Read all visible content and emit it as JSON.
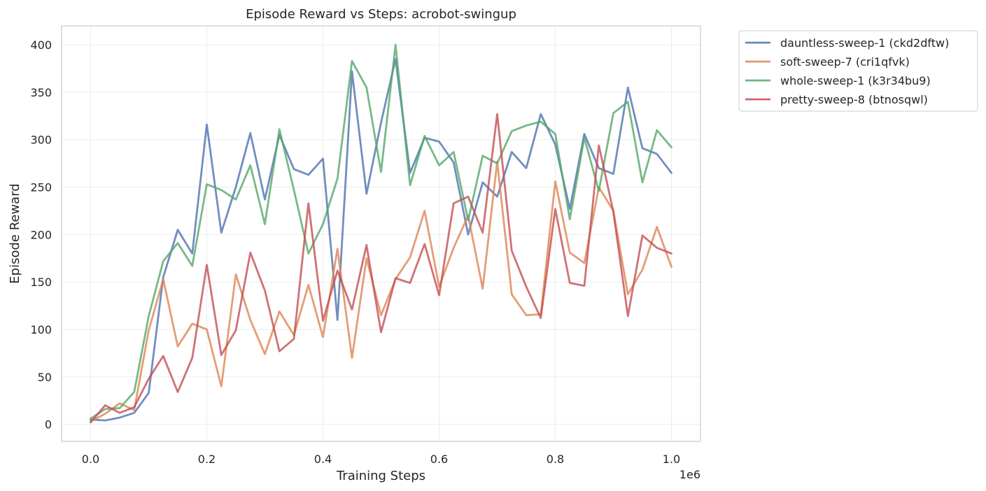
{
  "chart_data": {
    "type": "line",
    "title": "Episode Reward vs Steps: acrobot-swingup",
    "xlabel": "Training Steps",
    "ylabel": "Episode Reward",
    "x_offset_label": "1e6",
    "xlim": [
      -0.05,
      1.05
    ],
    "ylim": [
      -18,
      420
    ],
    "xticks": [
      0.0,
      0.2,
      0.4,
      0.6,
      0.8,
      1.0
    ],
    "xtick_labels": [
      "0.0",
      "0.2",
      "0.4",
      "0.6",
      "0.8",
      "1.0"
    ],
    "yticks": [
      0,
      50,
      100,
      150,
      200,
      250,
      300,
      350,
      400
    ],
    "ytick_labels": [
      "0",
      "50",
      "100",
      "150",
      "200",
      "250",
      "300",
      "350",
      "400"
    ],
    "grid": true,
    "legend_position": "outside-top-right",
    "x": [
      0.0,
      0.025,
      0.05,
      0.075,
      0.1,
      0.125,
      0.15,
      0.175,
      0.2,
      0.225,
      0.25,
      0.275,
      0.3,
      0.325,
      0.35,
      0.375,
      0.4,
      0.425,
      0.45,
      0.475,
      0.5,
      0.525,
      0.55,
      0.575,
      0.6,
      0.625,
      0.65,
      0.675,
      0.7,
      0.725,
      0.75,
      0.775,
      0.8,
      0.825,
      0.85,
      0.875,
      0.9,
      0.925,
      0.95,
      0.975,
      1.0
    ],
    "series": [
      {
        "name": "dauntless-sweep-1 (ckd2dftw)",
        "color": "#4c72b0",
        "values": [
          5,
          4,
          7,
          12,
          33,
          155,
          205,
          180,
          316,
          202,
          250,
          307,
          237,
          305,
          269,
          263,
          280,
          110,
          372,
          243,
          318,
          385,
          265,
          302,
          298,
          276,
          200,
          255,
          240,
          287,
          270,
          327,
          295,
          227,
          306,
          270,
          264,
          355,
          291,
          285,
          265
        ]
      },
      {
        "name": "soft-sweep-7 (cri1qfvk)",
        "color": "#dd8452",
        "values": [
          3,
          11,
          22,
          15,
          99,
          153,
          82,
          106,
          100,
          40,
          158,
          110,
          74,
          119,
          94,
          147,
          92,
          185,
          70,
          175,
          115,
          153,
          176,
          225,
          145,
          186,
          220,
          143,
          277,
          137,
          115,
          116,
          256,
          181,
          170,
          250,
          225,
          137,
          163,
          208,
          166
        ]
      },
      {
        "name": "whole-sweep-1 (k3r34bu9)",
        "color": "#55a868",
        "values": [
          6,
          16,
          17,
          34,
          114,
          172,
          191,
          167,
          253,
          247,
          237,
          273,
          211,
          311,
          247,
          180,
          211,
          259,
          383,
          355,
          266,
          400,
          252,
          304,
          273,
          287,
          215,
          283,
          275,
          309,
          315,
          319,
          306,
          216,
          302,
          246,
          328,
          340,
          255,
          310,
          292
        ]
      },
      {
        "name": "pretty-sweep-8 (btnosqwl)",
        "color": "#c44e52",
        "values": [
          2,
          20,
          12,
          18,
          48,
          72,
          34,
          70,
          168,
          73,
          99,
          181,
          141,
          77,
          90,
          233,
          109,
          162,
          121,
          189,
          97,
          154,
          149,
          190,
          136,
          233,
          240,
          202,
          327,
          183,
          145,
          112,
          227,
          149,
          146,
          294,
          224,
          114,
          199,
          186,
          180
        ]
      }
    ]
  }
}
